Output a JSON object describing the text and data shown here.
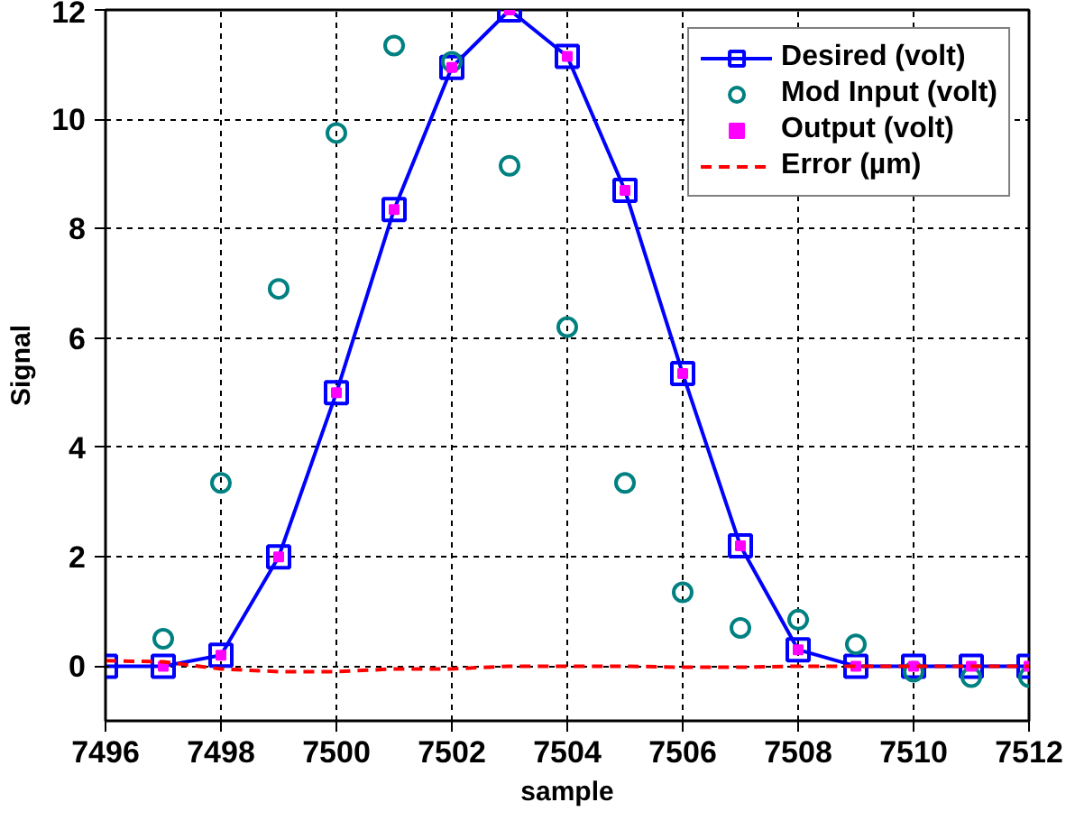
{
  "chart_data": {
    "type": "line",
    "xlabel": "sample",
    "ylabel": "Signal",
    "xlim": [
      7496,
      7512
    ],
    "ylim": [
      -1,
      12
    ],
    "xticks": [
      7496,
      7498,
      7500,
      7502,
      7504,
      7506,
      7508,
      7510,
      7512
    ],
    "yticks": [
      0,
      2,
      4,
      6,
      8,
      10,
      12
    ],
    "grid": true,
    "legend": "top right",
    "series": [
      {
        "name": "Desired (volt)",
        "color": "#0000ff",
        "marker": "square",
        "line_style": "solid",
        "x": [
          7496,
          7497,
          7498,
          7499,
          7500,
          7501,
          7502,
          7503,
          7504,
          7505,
          7506,
          7507,
          7508,
          7509,
          7510,
          7511,
          7512
        ],
        "values": [
          0,
          0,
          0.2,
          2.0,
          5.0,
          8.35,
          10.95,
          12,
          11.15,
          8.7,
          5.35,
          2.2,
          0.3,
          0,
          0,
          0,
          0
        ]
      },
      {
        "name": "Mod Input (volt)",
        "type": "scatter",
        "color": "#008080",
        "marker": "circle",
        "x": [
          7497,
          7498,
          7499,
          7500,
          7501,
          7502,
          7503,
          7504,
          7505,
          7506,
          7507,
          7508,
          7509,
          7510,
          7511,
          7512
        ],
        "values": [
          0.5,
          3.35,
          6.9,
          9.75,
          11.35,
          11.05,
          9.15,
          6.2,
          3.35,
          1.35,
          0.7,
          0.85,
          0.4,
          -0.1,
          -0.2,
          -0.2
        ]
      },
      {
        "name": "Output (volt)",
        "type": "scatter",
        "color": "#ff00ff",
        "marker": "square",
        "x": [
          7497,
          7498,
          7499,
          7500,
          7501,
          7502,
          7503,
          7504,
          7505,
          7506,
          7507,
          7508,
          7509,
          7510,
          7511,
          7512
        ],
        "values": [
          0,
          0.2,
          2.0,
          5.0,
          8.35,
          10.95,
          12,
          11.15,
          8.7,
          5.35,
          2.2,
          0.3,
          0,
          0,
          0,
          0
        ]
      },
      {
        "name": "Error (µm)",
        "color": "#ff0000",
        "marker": "none",
        "line_style": "dashed",
        "x": [
          7496,
          7497,
          7498,
          7499,
          7500,
          7501,
          7502,
          7503,
          7504,
          7505,
          7506,
          7507,
          7508,
          7509,
          7510,
          7511,
          7512
        ],
        "values": [
          0.1,
          0.08,
          -0.05,
          -0.1,
          -0.1,
          -0.05,
          -0.05,
          0,
          0,
          0,
          -0.02,
          -0.02,
          0,
          0,
          0,
          0,
          0
        ]
      }
    ]
  }
}
